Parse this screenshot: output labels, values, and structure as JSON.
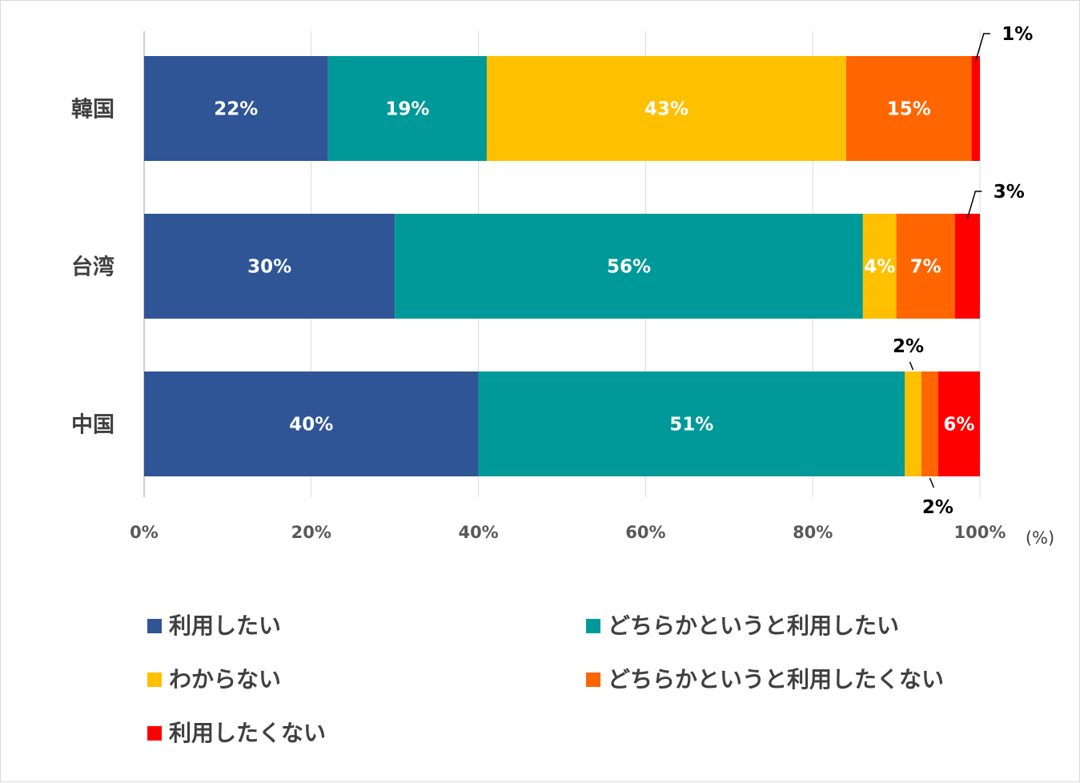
{
  "chart_data": {
    "type": "bar",
    "orientation": "horizontal",
    "stacked": true,
    "categories": [
      "韓国",
      "台湾",
      "中国"
    ],
    "series": [
      {
        "name": "利用したい",
        "values": [
          22,
          30,
          40
        ],
        "color": "#2f5597",
        "labels": [
          "22%",
          "30%",
          "40%"
        ],
        "label_color": "#ffffff"
      },
      {
        "name": "どちらかというと利用したい",
        "values": [
          19,
          56,
          51
        ],
        "color": "#009999",
        "labels": [
          "19%",
          "56%",
          "51%"
        ],
        "label_color": "#ffffff"
      },
      {
        "name": "わからない",
        "values": [
          43,
          4,
          2
        ],
        "color": "#ffc000",
        "labels": [
          "43%",
          "4%",
          "2%"
        ],
        "label_color": "#ffffff"
      },
      {
        "name": "どちらかというと利用したくない",
        "values": [
          15,
          7,
          2
        ],
        "color": "#ff6600",
        "labels": [
          "15%",
          "7%",
          "2%"
        ],
        "label_color": "#ffffff"
      },
      {
        "name": "利用したくない",
        "values": [
          1,
          3,
          6
        ],
        "color": "#ff0000",
        "labels": [
          "1%",
          "3%",
          "6%"
        ],
        "label_color": "#ffffff"
      }
    ],
    "xlim": [
      0,
      100
    ],
    "xticks": [
      "0%",
      "20%",
      "40%",
      "60%",
      "80%",
      "100%"
    ],
    "x_unit": "(%)",
    "grid": true,
    "legend_position": "bottom"
  }
}
